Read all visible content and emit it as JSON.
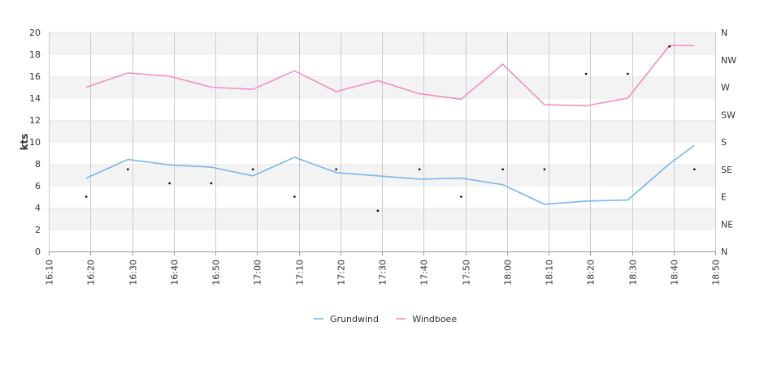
{
  "chart_data": {
    "type": "line",
    "ylabel": "kts",
    "ylim": [
      0,
      20
    ],
    "y_ticks": [
      0,
      2,
      4,
      6,
      8,
      10,
      12,
      14,
      16,
      18,
      20
    ],
    "x_ticks": [
      "16:10",
      "16:20",
      "16:30",
      "16:40",
      "16:50",
      "17:00",
      "17:10",
      "17:20",
      "17:30",
      "17:40",
      "17:50",
      "18:00",
      "18:10",
      "18:20",
      "18:30",
      "18:40",
      "18:50"
    ],
    "x_range": [
      "16:10",
      "18:50"
    ],
    "x": [
      "16:19",
      "16:29",
      "16:39",
      "16:49",
      "16:59",
      "17:09",
      "17:19",
      "17:29",
      "17:39",
      "17:49",
      "17:59",
      "18:09",
      "18:19",
      "18:29",
      "18:39",
      "18:45"
    ],
    "right_axis": {
      "labels": [
        "N",
        "NE",
        "E",
        "SE",
        "S",
        "SW",
        "W",
        "NW",
        "N"
      ],
      "range_degrees": [
        0,
        360
      ]
    },
    "series": [
      {
        "name": "Grundwind",
        "color": "#7cb5ec",
        "values": [
          6.7,
          8.4,
          7.9,
          7.7,
          6.9,
          8.6,
          7.2,
          6.9,
          6.6,
          6.7,
          6.1,
          4.3,
          4.6,
          4.7,
          8.0,
          9.7
        ]
      },
      {
        "name": "Windboee",
        "color": "#f28fbf",
        "values": [
          15.0,
          16.3,
          16.0,
          15.0,
          14.8,
          16.5,
          14.6,
          15.6,
          14.4,
          13.9,
          17.1,
          13.4,
          13.3,
          14.0,
          18.8,
          18.8
        ]
      }
    ],
    "direction_degrees": [
      90,
      135,
      112,
      112,
      135,
      90,
      135,
      67,
      135,
      90,
      135,
      135,
      292,
      292,
      337,
      135
    ],
    "grid": true,
    "legend": "bottom-center"
  }
}
